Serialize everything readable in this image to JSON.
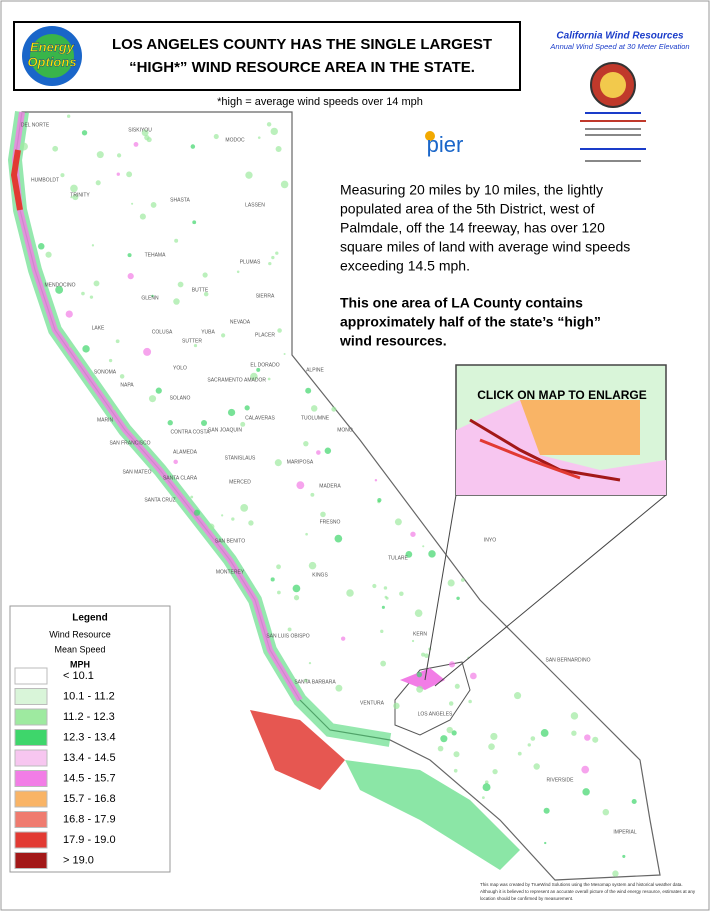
{
  "header": {
    "title_lines": [
      "LOS ANGELES COUNTY HAS THE SINGLE LARGEST",
      "“HIGH*” WIND RESOURCE AREA IN THE STATE."
    ],
    "footnote": "*high = average wind speeds over 14 mph"
  },
  "logo": {
    "text_lines": [
      "Energy",
      "Options"
    ]
  },
  "agency": {
    "title": "California Wind Resources",
    "subtitle": "Annual Wind Speed at 30 Meter Elevation",
    "pier": "pier"
  },
  "body": {
    "paragraph": [
      "Measuring 20 miles by 10 miles, the lightly",
      "populated area of the 5th District, west of",
      "Palmdale, off the 14 freeway, has over 120",
      "square miles of land with average wind speeds",
      "exceeding 14.5 mph."
    ],
    "emphasis": [
      "This one area of LA County contains",
      "approximately half of the state’s “high”",
      "wind resources."
    ]
  },
  "inset": {
    "label": "CLICK ON MAP TO ENLARGE"
  },
  "legend": {
    "title": "Legend",
    "subtitle_lines": [
      "Wind Resource",
      "Mean Speed"
    ],
    "unit": "MPH",
    "items": [
      {
        "label": "< 10.1",
        "color": "#ffffff"
      },
      {
        "label": "10.1 - 11.2",
        "color": "#d9f5d9"
      },
      {
        "label": "11.2 - 12.3",
        "color": "#9eeaa0"
      },
      {
        "label": "12.3 - 13.4",
        "color": "#3ed66b"
      },
      {
        "label": "13.4 - 14.5",
        "color": "#f7c6f0"
      },
      {
        "label": "14.5 - 15.7",
        "color": "#f27de6"
      },
      {
        "label": "15.7 - 16.8",
        "color": "#f9b466"
      },
      {
        "label": "16.8 - 17.9",
        "color": "#ef7b6f"
      },
      {
        "label": "17.9 - 19.0",
        "color": "#e23a33"
      },
      {
        "label": "> 19.0",
        "color": "#a31818"
      }
    ]
  },
  "counties": [
    "DEL NORTE",
    "SISKIYOU",
    "MODOC",
    "HUMBOLDT",
    "TRINITY",
    "SHASTA",
    "LASSEN",
    "TEHAMA",
    "PLUMAS",
    "BUTTE",
    "GLENN",
    "SIERRA",
    "MENDOCINO",
    "NEVADA",
    "LAKE",
    "COLUSA",
    "YUBA",
    "SUTTER",
    "PLACER",
    "YOLO",
    "EL DORADO",
    "SONOMA",
    "NAPA",
    "SACRAMENTO",
    "AMADOR",
    "ALPINE",
    "SOLANO",
    "MARIN",
    "CONTRA COSTA",
    "SAN JOAQUIN",
    "CALAVERAS",
    "TUOLUMNE",
    "MONO",
    "SAN FRANCISCO",
    "ALAMEDA",
    "STANISLAUS",
    "SAN MATEO",
    "SANTA CLARA",
    "MARIPOSA",
    "MERCED",
    "MADERA",
    "SANTA CRUZ",
    "FRESNO",
    "SAN BENITO",
    "INYO",
    "MONTEREY",
    "TULARE",
    "KINGS",
    "SAN LUIS OBISPO",
    "KERN",
    "SAN BERNARDINO",
    "SANTA BARBARA",
    "VENTURA",
    "LOS ANGELES",
    "RIVERSIDE",
    "IMPERIAL"
  ],
  "disclaimer": [
    "This map was created by TrueWind Solutions using the Mesomap system and historical weather data.",
    "Although it is believed to represent an accurate overall picture of the wind energy resource, estimates at any",
    "location should be confirmed by measurement."
  ]
}
